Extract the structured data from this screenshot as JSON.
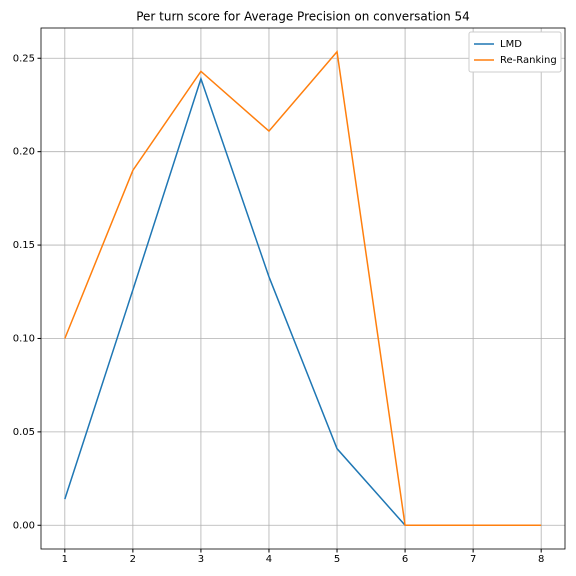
{
  "chart_data": {
    "type": "line",
    "title": "Per turn score for Average Precision on conversation 54",
    "x": [
      1,
      2,
      3,
      4,
      5,
      6,
      7,
      8
    ],
    "series": [
      {
        "name": "LMD",
        "color": "#1f77b4",
        "values": [
          0.014,
          0.126,
          0.239,
          0.133,
          0.041,
          0,
          0,
          0
        ]
      },
      {
        "name": "Re-Ranking",
        "color": "#ff7f0e",
        "values": [
          0.1,
          0.19,
          0.243,
          0.211,
          0.2535,
          0,
          0,
          0
        ]
      }
    ],
    "xlim": [
      0.65,
      8.35
    ],
    "xticks": [
      1,
      2,
      3,
      4,
      5,
      6,
      7,
      8
    ],
    "ylim": [
      -0.0127,
      0.2662
    ],
    "yticks": [
      {
        "value": 0,
        "label": "0.00"
      },
      {
        "value": 0.05,
        "label": "0.05"
      },
      {
        "value": 0.1,
        "label": "0.10"
      },
      {
        "value": 0.15,
        "label": "0.15"
      },
      {
        "value": 0.2,
        "label": "0.20"
      },
      {
        "value": 0.25,
        "label": "0.25"
      }
    ],
    "grid": true,
    "legend": "upper right"
  }
}
